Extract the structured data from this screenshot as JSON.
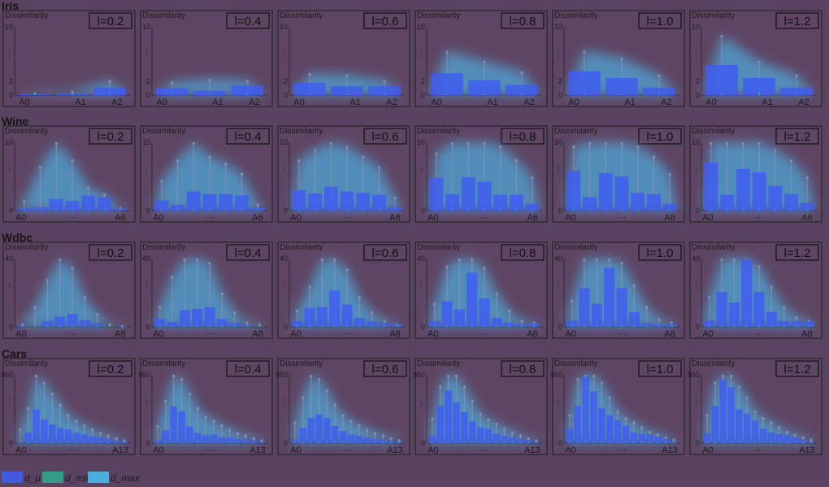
{
  "colors": {
    "background": "#5a4360",
    "mu": "#3f5df0",
    "min": "#2fa88a",
    "max": "#49c8ff",
    "frame": "#1c1c1c"
  },
  "legend": {
    "items": [
      {
        "label": "d_μ"
      },
      {
        "label": "d_min"
      },
      {
        "label": "d_max"
      }
    ]
  },
  "chart_data": [
    {
      "dataset": "Iris",
      "type": "bar",
      "ylabel": "Dissimilarity",
      "ylim": [
        0,
        10
      ],
      "yticks": [
        "10",
        "⋮",
        "2",
        "0"
      ],
      "xtick_labels": [
        "A0",
        "A1",
        "A2"
      ],
      "panels": [
        {
          "label": "l=0.2",
          "mu": [
            0.15,
            0.25,
            1.1
          ],
          "min": [
            0.05,
            0.05,
            0.05
          ],
          "max": [
            0.4,
            0.6,
            2.2
          ]
        },
        {
          "label": "l=0.4",
          "mu": [
            1.0,
            0.6,
            1.4
          ],
          "min": [
            0.05,
            0.05,
            0.05
          ],
          "max": [
            2.0,
            2.4,
            2.2
          ]
        },
        {
          "label": "l=0.6",
          "mu": [
            1.8,
            1.3,
            1.3
          ],
          "min": [
            0.05,
            0.05,
            0.05
          ],
          "max": [
            3.2,
            3.0,
            2.2
          ]
        },
        {
          "label": "l=0.8",
          "mu": [
            3.2,
            2.2,
            1.5
          ],
          "min": [
            0.1,
            0.1,
            0.05
          ],
          "max": [
            6.5,
            5.0,
            3.5
          ]
        },
        {
          "label": "l=1.0",
          "mu": [
            3.5,
            2.5,
            1.1
          ],
          "min": [
            0.1,
            0.1,
            0.05
          ],
          "max": [
            6.5,
            5.5,
            3.0
          ]
        },
        {
          "label": "l=1.2",
          "mu": [
            4.4,
            2.5,
            1.1
          ],
          "min": [
            0.1,
            0.5,
            0.05
          ],
          "max": [
            8.8,
            5.0,
            3.0
          ]
        }
      ]
    },
    {
      "dataset": "Wine",
      "type": "bar",
      "ylabel": "Dissimilarity",
      "ylim": [
        0,
        10
      ],
      "yticks": [
        "10",
        "⋮",
        "0"
      ],
      "xtick_labels": [
        "A0",
        "···",
        "A6"
      ],
      "panels": [
        {
          "label": "l=0.2",
          "mu": [
            0.3,
            0.5,
            1.7,
            1.4,
            2.2,
            1.9,
            0.3
          ],
          "min": [
            0.05,
            0.05,
            0.05,
            0.05,
            0.05,
            0.05,
            0.05
          ],
          "max": [
            1.5,
            6.5,
            10.0,
            7.5,
            3.5,
            2.5,
            0.5
          ]
        },
        {
          "label": "l=0.4",
          "mu": [
            1.5,
            0.8,
            2.8,
            2.4,
            2.4,
            2.2,
            0.4
          ],
          "min": [
            0.05,
            0.05,
            0.05,
            0.05,
            0.05,
            0.05,
            0.05
          ],
          "max": [
            4.5,
            7.5,
            10.0,
            8.0,
            7.0,
            5.5,
            1.0
          ]
        },
        {
          "label": "l=0.6",
          "mu": [
            3.0,
            2.5,
            3.5,
            2.8,
            2.6,
            2.3,
            0.5
          ],
          "min": [
            0.05,
            0.05,
            0.05,
            0.05,
            0.05,
            0.05,
            0.05
          ],
          "max": [
            7.5,
            9.0,
            10.0,
            9.5,
            8.0,
            6.5,
            2.0
          ]
        },
        {
          "label": "l=0.8",
          "mu": [
            4.8,
            2.4,
            4.9,
            4.2,
            2.3,
            2.3,
            1.0
          ],
          "min": [
            0.05,
            0.05,
            0.05,
            0.05,
            0.05,
            0.05,
            0.05
          ],
          "max": [
            8.5,
            10.0,
            10.0,
            10.0,
            9.5,
            7.5,
            5.0
          ]
        },
        {
          "label": "l=1.0",
          "mu": [
            5.8,
            2.0,
            5.5,
            5.0,
            2.6,
            2.4,
            1.0
          ],
          "min": [
            0.05,
            0.05,
            0.05,
            0.05,
            0.05,
            0.05,
            0.05
          ],
          "max": [
            9.5,
            10.0,
            10.0,
            10.0,
            9.5,
            8.0,
            5.5
          ]
        },
        {
          "label": "l=1.2",
          "mu": [
            7.1,
            2.3,
            6.1,
            5.6,
            3.6,
            2.4,
            1.1
          ],
          "min": [
            0.05,
            0.05,
            0.05,
            0.05,
            0.05,
            0.05,
            0.05
          ],
          "max": [
            10.0,
            10.0,
            10.0,
            10.0,
            9.0,
            7.5,
            5.0
          ]
        }
      ]
    },
    {
      "dataset": "Wdbc",
      "type": "bar",
      "ylabel": "Dissimilarity",
      "ylim": [
        0,
        40
      ],
      "yticks": [
        "40",
        "⋮",
        "0"
      ],
      "xtick_labels": [
        "A0",
        "···",
        "A8"
      ],
      "panels": [
        {
          "label": "l=0.2",
          "mu": [
            0.8,
            0.6,
            3.5,
            6.0,
            7.5,
            4.0,
            2.0,
            0.4,
            0.2
          ],
          "min": [
            0.1,
            0.1,
            0.1,
            0.1,
            0.1,
            0.1,
            0.1,
            0.1,
            0.1
          ],
          "max": [
            2,
            12,
            28,
            40,
            35,
            18,
            8,
            2,
            1
          ]
        },
        {
          "label": "l=0.4",
          "mu": [
            4.6,
            2.8,
            9.8,
            10.5,
            11.5,
            4.6,
            2.4,
            1.0,
            0.5
          ],
          "min": [
            0.1,
            0.1,
            0.1,
            0.1,
            0.1,
            0.1,
            0.1,
            0.1,
            0.1
          ],
          "max": [
            12,
            30,
            40,
            40,
            38,
            20,
            9,
            3,
            2
          ]
        },
        {
          "label": "l=0.6",
          "mu": [
            3.5,
            11.2,
            11.6,
            21.3,
            13.1,
            5.3,
            3.2,
            2.2,
            1.7
          ],
          "min": [
            0.1,
            0.1,
            0.1,
            0.1,
            0.1,
            0.1,
            0.1,
            0.1,
            0.1
          ],
          "max": [
            10,
            24,
            40,
            40,
            34,
            18,
            9,
            4,
            2
          ]
        },
        {
          "label": "l=0.8",
          "mu": [
            3.2,
            15.0,
            10.2,
            31.8,
            16.6,
            5.1,
            2.4,
            1.5,
            2.2
          ],
          "min": [
            0.1,
            0.1,
            0.1,
            0.1,
            0.1,
            0.1,
            0.1,
            0.1,
            0.1
          ],
          "max": [
            14,
            36,
            40,
            40,
            35,
            20,
            10,
            4,
            3
          ]
        },
        {
          "label": "l=1.0",
          "mu": [
            3.7,
            22.7,
            13.5,
            34.6,
            22.8,
            8.5,
            2.2,
            1.7,
            1.7
          ],
          "min": [
            0.1,
            0.1,
            0.1,
            0.1,
            0.1,
            0.1,
            0.1,
            0.1,
            0.1
          ],
          "max": [
            16,
            40,
            40,
            40,
            38,
            25,
            12,
            5,
            3
          ]
        },
        {
          "label": "l=1.2",
          "mu": [
            3.6,
            20.4,
            14.3,
            39.6,
            20.4,
            8.8,
            3.3,
            3.3,
            3.3
          ],
          "min": [
            0.1,
            0.1,
            0.1,
            0.1,
            0.1,
            0.1,
            0.1,
            0.1,
            0.1
          ],
          "max": [
            18,
            40,
            40,
            40,
            36,
            24,
            12,
            6,
            4
          ]
        }
      ]
    },
    {
      "dataset": "Cars",
      "type": "bar",
      "ylabel": "Dissimilarity",
      "ylim": [
        0,
        950
      ],
      "yticks": [
        "950",
        "⋮",
        "0"
      ],
      "xtick_labels": [
        "A0",
        "···",
        "A13"
      ],
      "panels": [
        {
          "label": "l=0.2",
          "mu": [
            20,
            150,
            470,
            330,
            260,
            210,
            190,
            140,
            120,
            90,
            80,
            60,
            40,
            20
          ],
          "min": [
            5,
            5,
            5,
            5,
            5,
            5,
            5,
            5,
            5,
            5,
            5,
            5,
            5,
            5
          ],
          "max": [
            200,
            500,
            950,
            850,
            700,
            550,
            400,
            320,
            260,
            200,
            150,
            120,
            80,
            50
          ]
        },
        {
          "label": "l=0.4",
          "mu": [
            40,
            180,
            510,
            440,
            230,
            140,
            110,
            120,
            80,
            80,
            60,
            50,
            40,
            20
          ],
          "min": [
            5,
            5,
            5,
            5,
            5,
            5,
            5,
            5,
            5,
            5,
            5,
            5,
            5,
            5
          ],
          "max": [
            250,
            600,
            950,
            900,
            700,
            500,
            380,
            320,
            260,
            200,
            150,
            120,
            80,
            50
          ]
        },
        {
          "label": "l=0.6",
          "mu": [
            50,
            210,
            350,
            400,
            350,
            240,
            170,
            120,
            100,
            80,
            60,
            50,
            30,
            20
          ],
          "min": [
            5,
            5,
            5,
            5,
            5,
            5,
            5,
            5,
            5,
            5,
            5,
            5,
            5,
            5
          ],
          "max": [
            300,
            650,
            950,
            900,
            750,
            550,
            400,
            320,
            260,
            200,
            150,
            120,
            80,
            50
          ]
        },
        {
          "label": "l=0.8",
          "mu": [
            100,
            520,
            730,
            570,
            430,
            300,
            220,
            200,
            130,
            100,
            80,
            60,
            40,
            20
          ],
          "min": [
            5,
            5,
            5,
            5,
            5,
            5,
            5,
            5,
            5,
            5,
            5,
            5,
            5,
            5
          ],
          "max": [
            350,
            800,
            950,
            950,
            800,
            600,
            420,
            340,
            280,
            220,
            160,
            120,
            80,
            50
          ]
        },
        {
          "label": "l=1.0",
          "mu": [
            200,
            520,
            930,
            720,
            490,
            390,
            320,
            240,
            150,
            130,
            120,
            90,
            60,
            30
          ],
          "min": [
            5,
            5,
            5,
            5,
            5,
            5,
            5,
            5,
            5,
            5,
            5,
            5,
            5,
            5
          ],
          "max": [
            400,
            900,
            950,
            950,
            850,
            650,
            450,
            360,
            300,
            230,
            170,
            130,
            90,
            60
          ]
        },
        {
          "label": "l=1.2",
          "mu": [
            140,
            520,
            880,
            780,
            470,
            410,
            320,
            200,
            150,
            130,
            110,
            80,
            50,
            20
          ],
          "min": [
            5,
            5,
            5,
            5,
            5,
            5,
            5,
            5,
            5,
            5,
            5,
            5,
            5,
            5
          ],
          "max": [
            400,
            850,
            950,
            950,
            800,
            650,
            450,
            360,
            300,
            230,
            170,
            130,
            90,
            60
          ]
        }
      ]
    }
  ]
}
